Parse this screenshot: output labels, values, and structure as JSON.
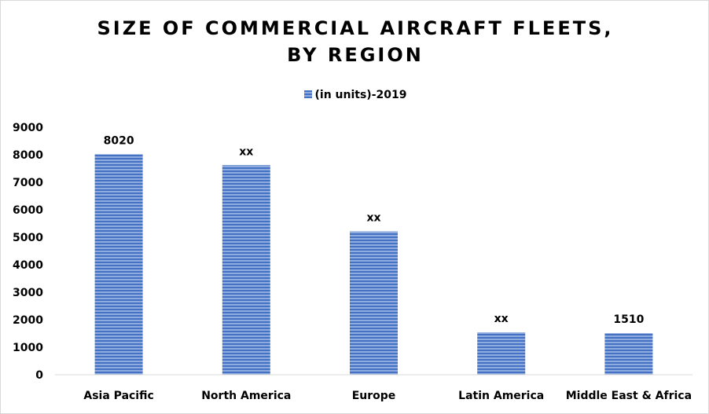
{
  "chart_data": {
    "type": "bar",
    "title_line1": "SIZE OF COMMERCIAL AIRCRAFT FLEETS,",
    "title_line2": "BY REGION",
    "xlabel": "",
    "ylabel": "",
    "ylim": [
      0,
      9000
    ],
    "yticks": [
      0,
      1000,
      2000,
      3000,
      4000,
      5000,
      6000,
      7000,
      8000,
      9000
    ],
    "grid": false,
    "legend_position": "top",
    "categories": [
      "Asia Pacific",
      "North America",
      "Europe",
      "Latin America",
      "Middle East & Africa"
    ],
    "series": [
      {
        "name": "(in units)-2019",
        "color": "#4472c4",
        "values": [
          8020,
          7620,
          5210,
          1540,
          1510
        ],
        "data_labels": [
          "8020",
          "xx",
          "xx",
          "xx",
          "1510"
        ]
      }
    ]
  }
}
